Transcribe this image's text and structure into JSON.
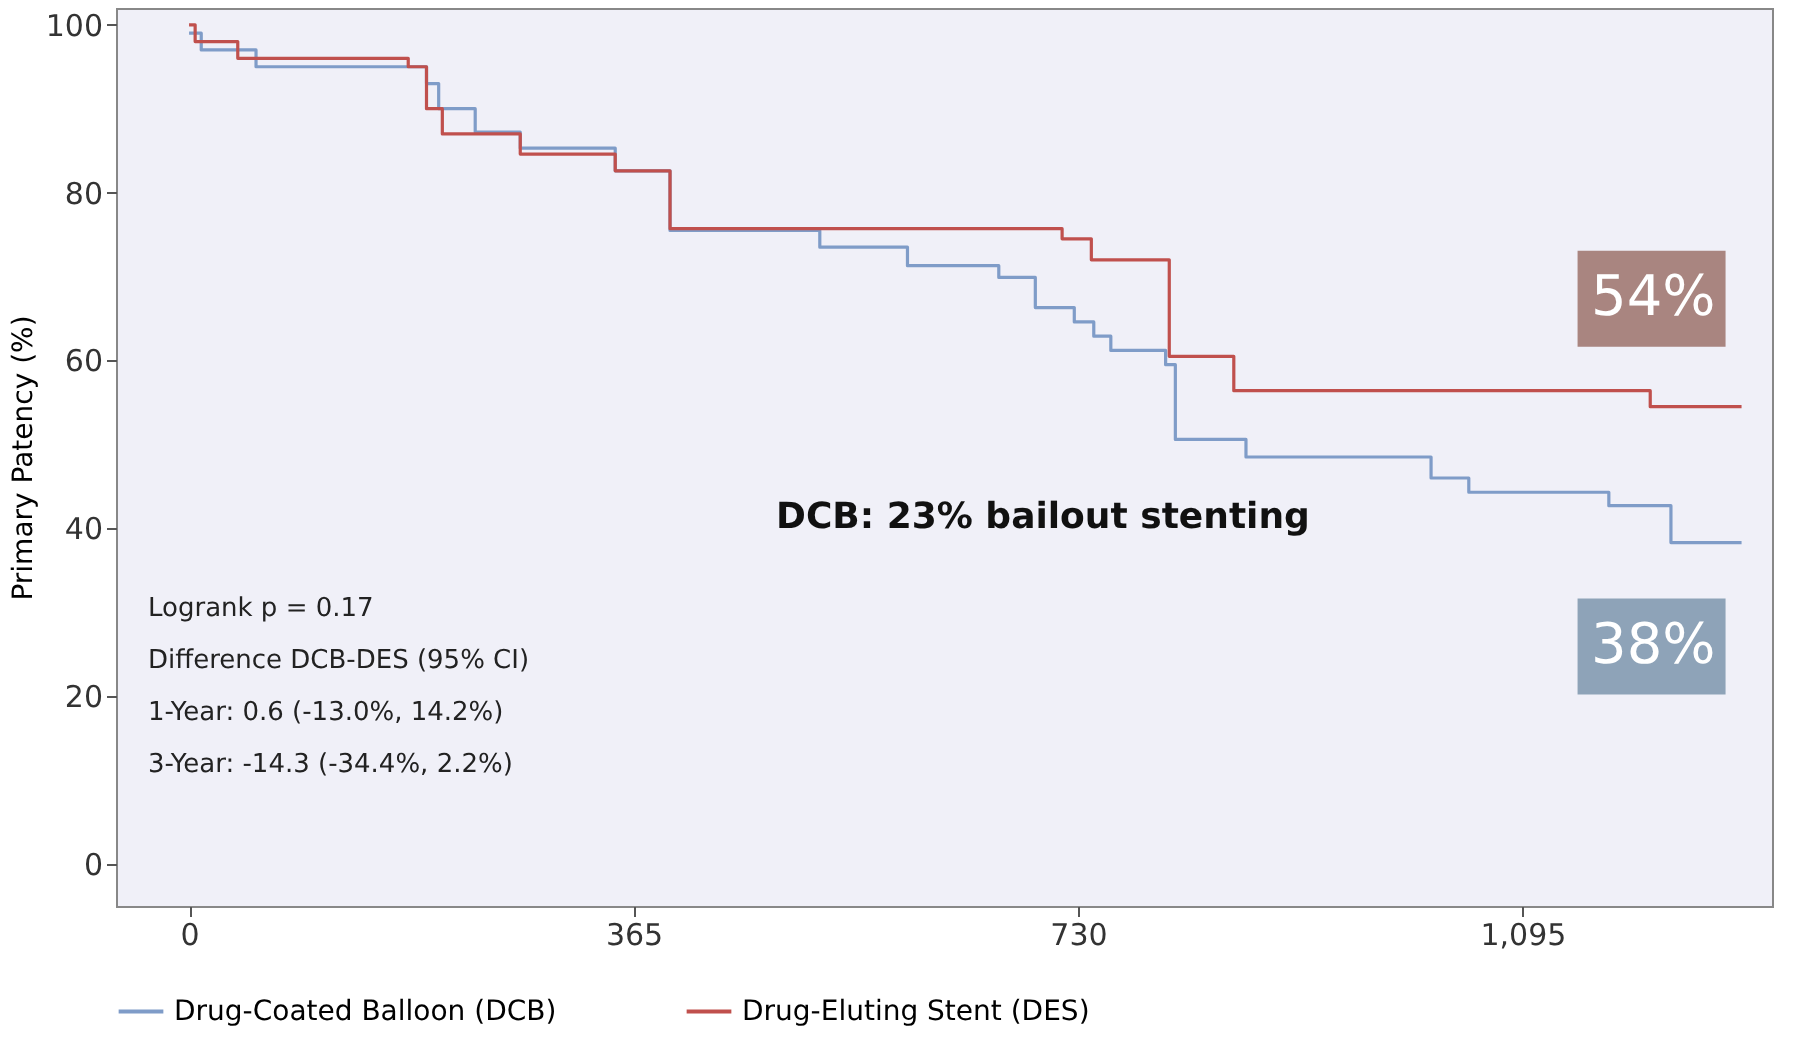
{
  "chart_data": {
    "type": "step",
    "ylabel": "Primary Patency (%)",
    "xlim": [
      -60,
      1300
    ],
    "ylim": [
      -5,
      102
    ],
    "xticks": [
      0,
      365,
      730,
      {
        "value": 1095,
        "label": "1,095"
      }
    ],
    "yticks": [
      0,
      20,
      40,
      60,
      80,
      100
    ],
    "grid": false,
    "legend": "bottom",
    "series": [
      {
        "name": "Drug-Coated Balloon (DCB)",
        "color": "#7f9cc8",
        "x": [
          0,
          10,
          55,
          195,
          205,
          235,
          272,
          350,
          395,
          518,
          590,
          665,
          695,
          727,
          743,
          757,
          802,
          810,
          868,
          1020,
          1051,
          1166,
          1217,
          1275
        ],
        "values": [
          99,
          97,
          95,
          93,
          90,
          87.2,
          85.3,
          82.6,
          75.5,
          73.5,
          71.3,
          69.9,
          66.3,
          64.6,
          62.9,
          61.2,
          59.5,
          50.6,
          48.5,
          46,
          44.3,
          42.7,
          38.3,
          38.3
        ]
      },
      {
        "name": "Drug-Eluting Stent (DES)",
        "color": "#c0504d",
        "x": [
          0,
          5,
          40,
          180,
          195,
          208,
          272,
          350,
          395,
          717,
          741,
          805,
          858,
          1200,
          1275
        ],
        "values": [
          100,
          98,
          96,
          95,
          90,
          87,
          84.6,
          82.6,
          75.7,
          74.5,
          72,
          60.5,
          56.4,
          54.5,
          54.5
        ]
      }
    ],
    "annotations": [
      {
        "text": "54%",
        "x": 1275,
        "y": 54.5
      },
      {
        "text": "38%",
        "x": 1275,
        "y": 38.3
      },
      "DCB: 23% bailout stenting",
      "Logrank p = 0.17",
      "Difference  DCB-DES (95% CI)",
      "1-Year: 0.6 (-13.0%, 14.2%)",
      "3-Year: -14.3 (-34.4%, 2.2%)"
    ]
  }
}
